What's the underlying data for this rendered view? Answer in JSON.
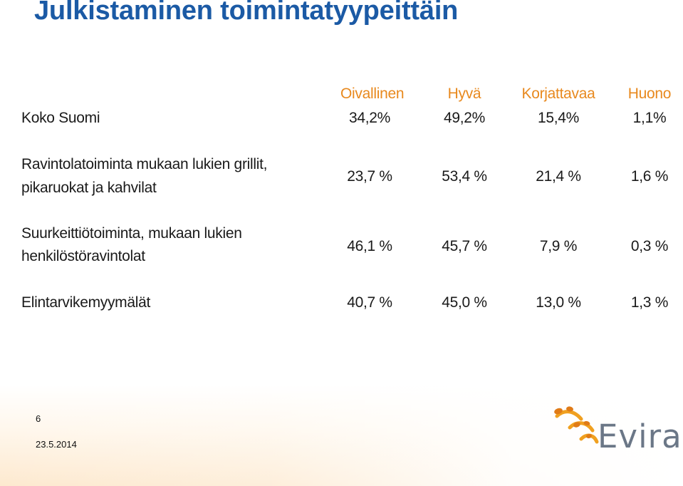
{
  "title": "Julkistaminen toimintatyypeittäin",
  "headers": [
    "Oivallinen",
    "Hyvä",
    "Korjattavaa",
    "Huono"
  ],
  "header_color": "#e8891e",
  "title_color": "#1b5aa5",
  "rows": [
    {
      "label": [
        "Koko Suomi"
      ],
      "values": [
        "34,2%",
        "49,2%",
        "15,4%",
        "1,1%"
      ]
    },
    {
      "label": [
        "Ravintolatoiminta mukaan lukien grillit,",
        "pikaruokat ja kahvilat"
      ],
      "values": [
        "23,7 %",
        "53,4 %",
        "21,4 %",
        "1,6 %"
      ]
    },
    {
      "label": [
        "Suurkeittiötoiminta, mukaan lukien",
        "henkilöstöravintolat"
      ],
      "values": [
        "46,1 %",
        "45,7 %",
        "7,9 %",
        "0,3 %"
      ]
    },
    {
      "label": [
        "Elintarvikemyymälät"
      ],
      "values": [
        "40,7 %",
        "45,0 %",
        "13,0 %",
        "1,3 %"
      ]
    }
  ],
  "footer": {
    "page_number": "6",
    "date": "23.5.2014",
    "logo_text": "Evira",
    "logo_icon": "evira-wheat-logo-icon"
  }
}
